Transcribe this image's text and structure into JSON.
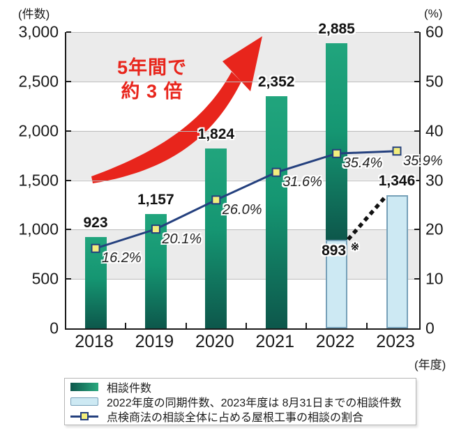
{
  "chart_data": {
    "type": "bar+line",
    "categories": [
      "2018",
      "2019",
      "2020",
      "2021",
      "2022",
      "2023"
    ],
    "series": [
      {
        "name": "相談件数",
        "type": "bar",
        "axis": "left",
        "values": [
          923,
          1157,
          1824,
          2352,
          2885,
          null
        ]
      },
      {
        "name": "2022年度の同期件数、2023年度は 8月31日までの相談件数",
        "type": "bar",
        "axis": "left",
        "values": [
          null,
          null,
          null,
          null,
          893,
          1346
        ]
      },
      {
        "name": "点検商法の相談全体に占める屋根工事の相談の割合",
        "type": "line",
        "axis": "right",
        "values": [
          16.2,
          20.1,
          26.0,
          31.6,
          35.4,
          35.9
        ]
      }
    ],
    "bar_value_labels": [
      "923",
      "1,157",
      "1,824",
      "2,352",
      "2,885",
      "1,346"
    ],
    "blue_value_label_2022": "893",
    "note_mark": "※",
    "pct_labels": [
      "16.2%",
      "20.1%",
      "26.0%",
      "31.6%",
      "35.4%",
      "35.9%"
    ],
    "left_axis": {
      "unit": "(件数)",
      "max": 3000,
      "tick_step": 500,
      "tick_labels": [
        "3,000",
        "2,500",
        "2,000",
        "1,500",
        "1,000",
        "500",
        "0"
      ]
    },
    "right_axis": {
      "unit": "(%)",
      "max": 60,
      "tick_step": 10,
      "tick_labels": [
        "60",
        "50",
        "40",
        "30",
        "20",
        "10",
        "0"
      ]
    },
    "x_axis": {
      "unit": "(年度)"
    },
    "annotation": {
      "line1": "5年間で",
      "line2": "約 3 倍"
    },
    "colors": {
      "bar_green_top": "#21a57d",
      "bar_green_bottom": "#0d574b",
      "bar_blue_fill": "#cde9f3",
      "bar_blue_border": "#76a0b8",
      "line": "#24407e",
      "marker_fill": "#f3ee7d",
      "arrow_red": "#e8251c",
      "dashed_black": "#111111",
      "band_gray": "#ebebeb",
      "gridline": "#bdbdbd"
    },
    "legend_position": "bottom"
  },
  "legend": {
    "items": [
      {
        "swatch": "green-bar",
        "label": "相談件数"
      },
      {
        "swatch": "blue-bar",
        "label": "2022年度の同期件数、2023年度は 8月31日までの相談件数"
      },
      {
        "swatch": "line-marker",
        "label": "点検商法の相談全体に占める屋根工事の相談の割合"
      }
    ]
  }
}
